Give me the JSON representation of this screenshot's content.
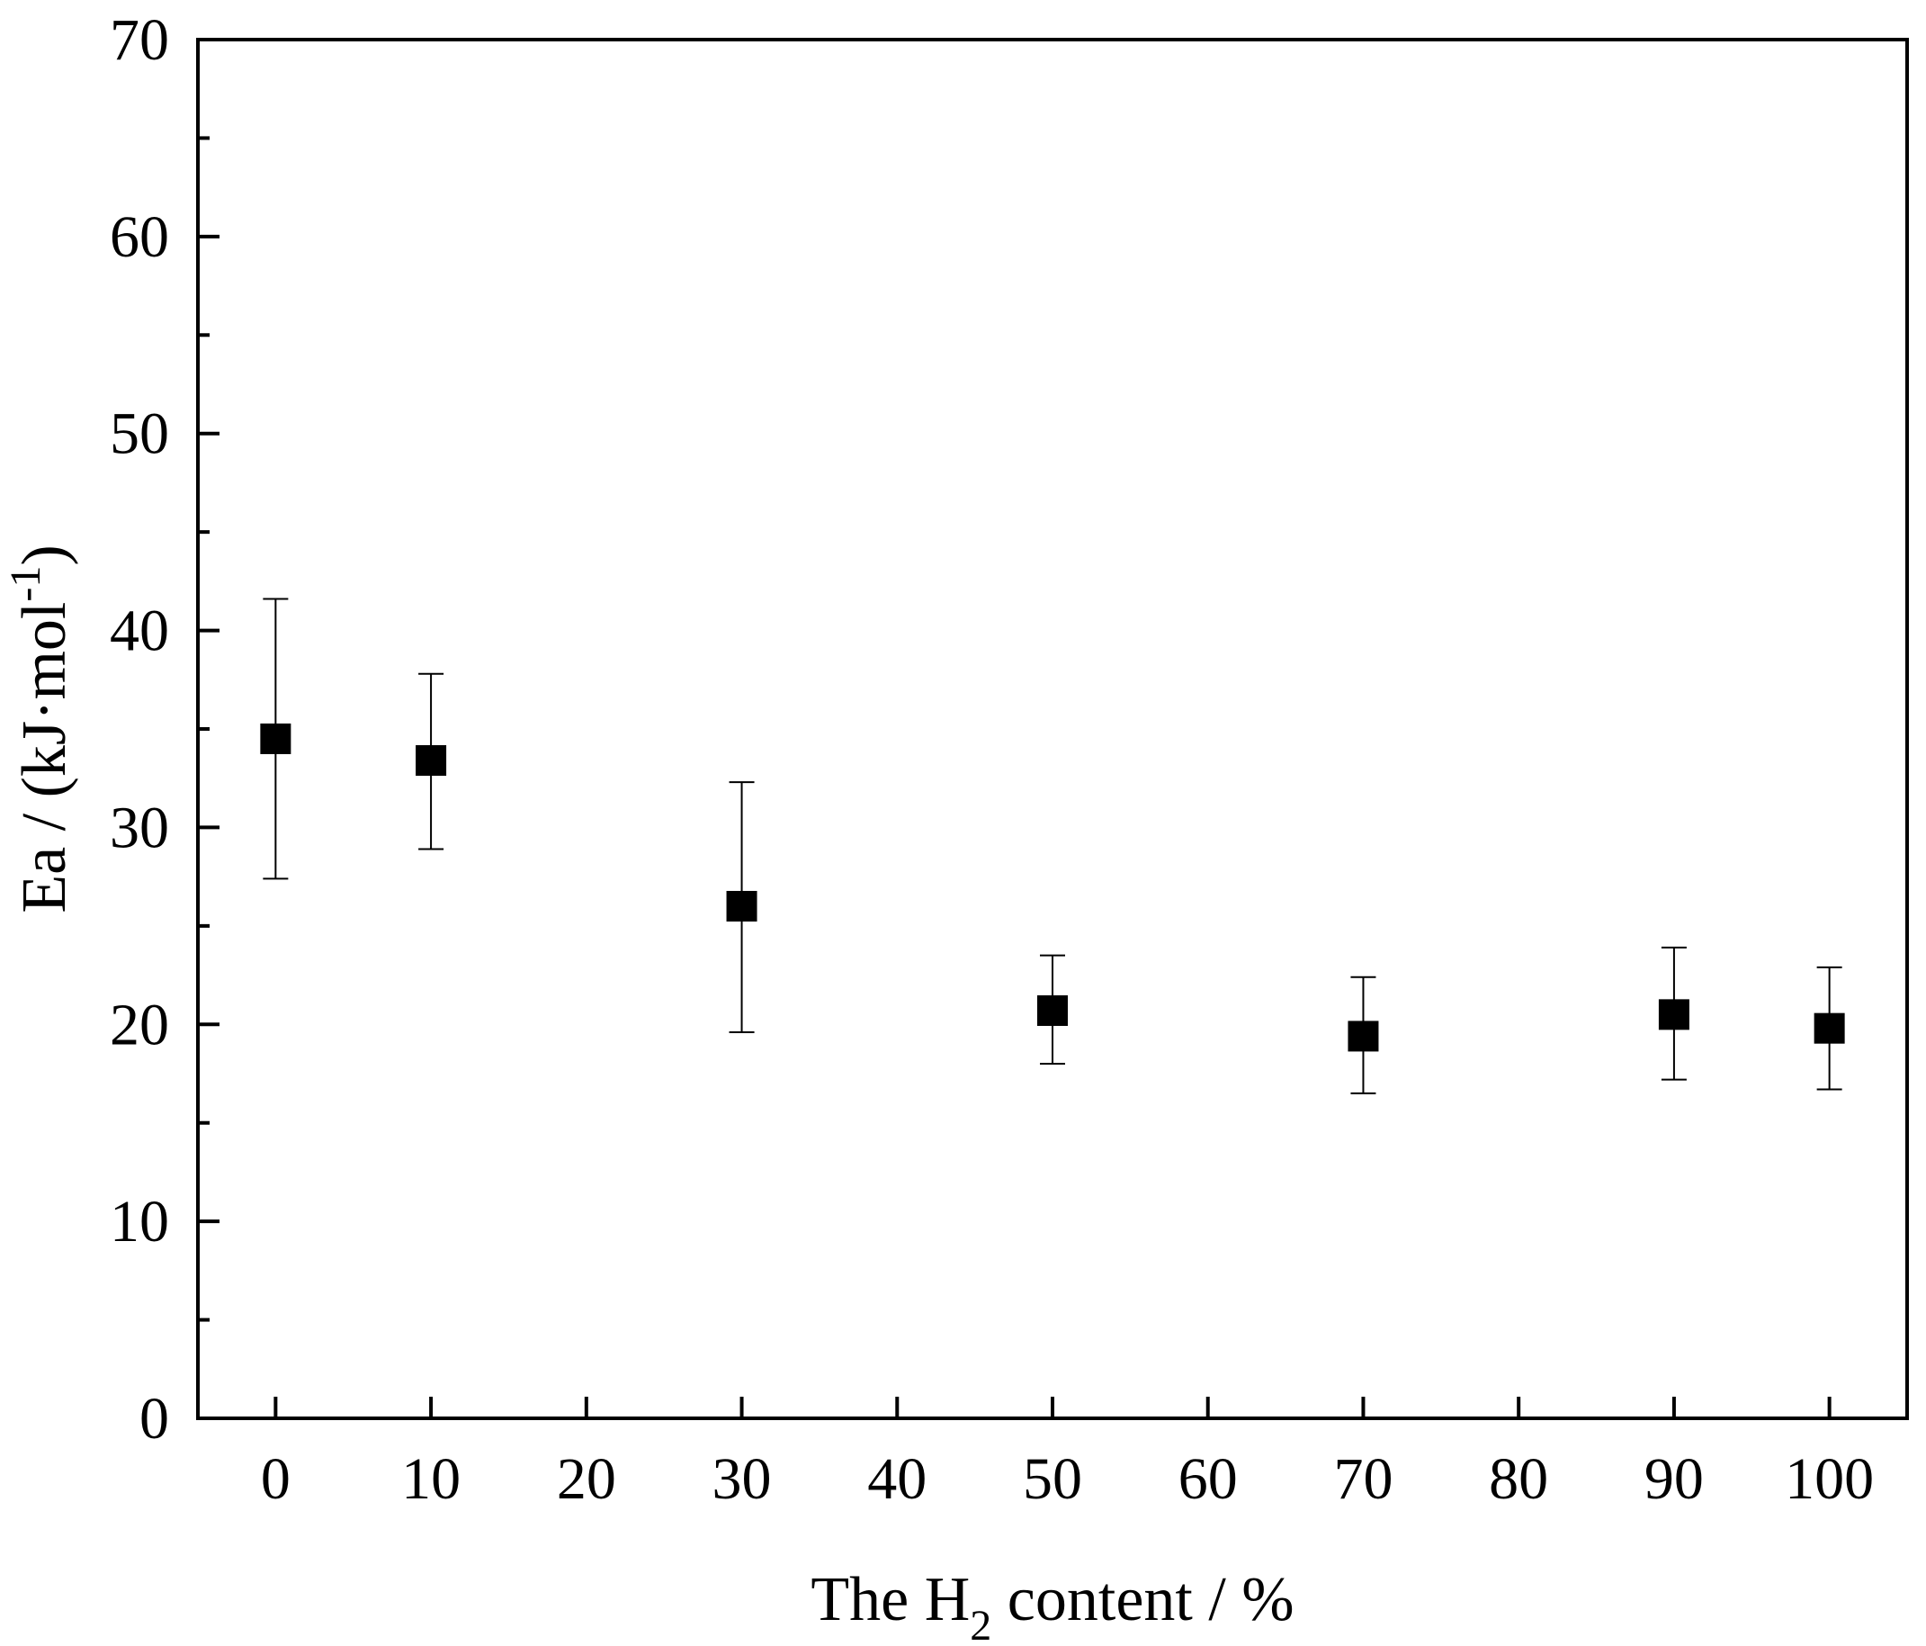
{
  "chart_data": {
    "type": "scatter",
    "xlabel": {
      "prefix": "The H",
      "sub": "2",
      "suffix": " content / %"
    },
    "ylabel": {
      "prefix": "Ea / (kJ·mol",
      "sup": "-1",
      "suffix": ")"
    },
    "xlim": [
      -5,
      105
    ],
    "ylim": [
      0,
      70
    ],
    "x_ticks": [
      0,
      10,
      20,
      30,
      40,
      50,
      60,
      70,
      80,
      90,
      100
    ],
    "x_tick_labels": [
      "0",
      "10",
      "20",
      "30",
      "40",
      "50",
      "60",
      "70",
      "80",
      "90",
      "100"
    ],
    "y_ticks": [
      0,
      10,
      20,
      30,
      40,
      50,
      60,
      70
    ],
    "y_tick_labels": [
      "0",
      "10",
      "20",
      "30",
      "40",
      "50",
      "60",
      "70"
    ],
    "y_minor_ticks": [
      5,
      15,
      25,
      35,
      45,
      55,
      65
    ],
    "grid": false,
    "legend": "none",
    "marker": "square",
    "color": "#000000",
    "points": [
      {
        "x": 0,
        "y": 34.5,
        "err_low": 27.4,
        "err_high": 41.6
      },
      {
        "x": 10,
        "y": 33.4,
        "err_low": 28.9,
        "err_high": 37.8
      },
      {
        "x": 30,
        "y": 26.0,
        "err_low": 19.6,
        "err_high": 32.3
      },
      {
        "x": 50,
        "y": 20.7,
        "err_low": 18.0,
        "err_high": 23.5
      },
      {
        "x": 70,
        "y": 19.4,
        "err_low": 16.5,
        "err_high": 22.4
      },
      {
        "x": 90,
        "y": 20.5,
        "err_low": 17.2,
        "err_high": 23.9
      },
      {
        "x": 100,
        "y": 19.8,
        "err_low": 16.7,
        "err_high": 22.9
      }
    ]
  }
}
